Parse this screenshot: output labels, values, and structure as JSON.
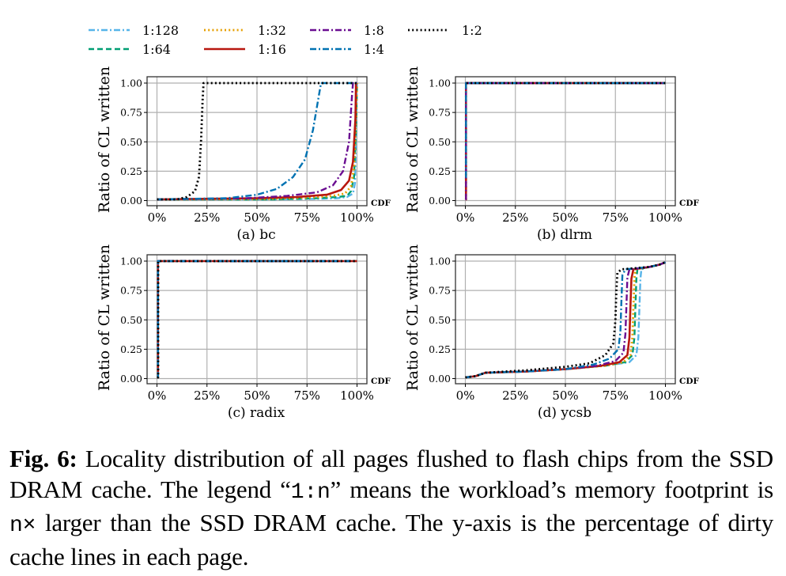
{
  "legend": [
    {
      "label": "1:128",
      "color": "#56b4e9",
      "dash": "dashdot"
    },
    {
      "label": "1:64",
      "color": "#009e73",
      "dash": "dashed"
    },
    {
      "label": "1:32",
      "color": "#e69f00",
      "dash": "dotted"
    },
    {
      "label": "1:16",
      "color": "#b8170f",
      "dash": "solid"
    },
    {
      "label": "1:8",
      "color": "#6a0d91",
      "dash": "dashdot"
    },
    {
      "label": "1:4",
      "color": "#0072b2",
      "dash": "dashdot"
    },
    {
      "label": "1:2",
      "color": "#000000",
      "dash": "dotted"
    }
  ],
  "chart_data": [
    {
      "type": "line",
      "title": "(a) bc",
      "xlabel": "CDF",
      "ylabel": "Ratio of CL written",
      "xlim": [
        0,
        100
      ],
      "ylim": [
        0,
        1
      ],
      "xticks": [
        "0%",
        "25%",
        "50%",
        "75%",
        "100%"
      ],
      "yticks": [
        "0.00",
        "0.25",
        "0.50",
        "0.75",
        "1.00"
      ],
      "grid": true,
      "series": [
        {
          "name": "1:128",
          "x": [
            0,
            60,
            80,
            90,
            95,
            98,
            99,
            99.5,
            100
          ],
          "y": [
            0.01,
            0.01,
            0.015,
            0.02,
            0.03,
            0.06,
            0.15,
            0.5,
            1.0
          ]
        },
        {
          "name": "1:64",
          "x": [
            0,
            60,
            80,
            90,
            95,
            97,
            98.5,
            99.5,
            100
          ],
          "y": [
            0.01,
            0.01,
            0.02,
            0.03,
            0.04,
            0.08,
            0.2,
            0.6,
            1.0
          ]
        },
        {
          "name": "1:32",
          "x": [
            0,
            55,
            75,
            88,
            94,
            97,
            98.5,
            99.5,
            100
          ],
          "y": [
            0.01,
            0.015,
            0.025,
            0.04,
            0.06,
            0.12,
            0.28,
            0.7,
            1.0
          ]
        },
        {
          "name": "1:16",
          "x": [
            0,
            50,
            70,
            85,
            92,
            96,
            98,
            99.2,
            99.5,
            100
          ],
          "y": [
            0.01,
            0.02,
            0.03,
            0.05,
            0.09,
            0.17,
            0.33,
            0.7,
            1.0,
            1.0
          ]
        },
        {
          "name": "1:8",
          "x": [
            0,
            45,
            65,
            80,
            88,
            93,
            96,
            97.5,
            98,
            100
          ],
          "y": [
            0.01,
            0.02,
            0.04,
            0.07,
            0.13,
            0.25,
            0.5,
            0.9,
            1.0,
            1.0
          ]
        },
        {
          "name": "1:4",
          "x": [
            0,
            35,
            50,
            60,
            68,
            74,
            78,
            81,
            82,
            100
          ],
          "y": [
            0.01,
            0.02,
            0.05,
            0.1,
            0.2,
            0.35,
            0.6,
            0.9,
            1.0,
            1.0
          ]
        },
        {
          "name": "1:2",
          "x": [
            0,
            10,
            15,
            19,
            21,
            22,
            22.8,
            23.3,
            24,
            100
          ],
          "y": [
            0.01,
            0.01,
            0.03,
            0.08,
            0.2,
            0.5,
            0.85,
            1.0,
            1.0,
            1.0
          ]
        }
      ]
    },
    {
      "type": "line",
      "title": "(b) dlrm",
      "xlabel": "CDF",
      "ylabel": "Ratio of CL written",
      "xlim": [
        0,
        100
      ],
      "ylim": [
        0,
        1
      ],
      "xticks": [
        "0%",
        "25%",
        "50%",
        "75%",
        "100%"
      ],
      "yticks": [
        "0.00",
        "0.25",
        "0.50",
        "0.75",
        "1.00"
      ],
      "grid": true,
      "series": [
        {
          "name": "1:128",
          "x": [
            0,
            0.3,
            0.3,
            100
          ],
          "y": [
            0.01,
            0.01,
            1.0,
            1.0
          ]
        },
        {
          "name": "1:64",
          "x": [
            0,
            0.3,
            0.3,
            100
          ],
          "y": [
            0.01,
            0.01,
            1.0,
            1.0
          ]
        },
        {
          "name": "1:32",
          "x": [
            0,
            0.3,
            0.3,
            100
          ],
          "y": [
            0.01,
            0.01,
            1.0,
            1.0
          ]
        },
        {
          "name": "1:16",
          "x": [
            0,
            0.3,
            0.3,
            100
          ],
          "y": [
            0.01,
            0.01,
            1.0,
            1.0
          ]
        },
        {
          "name": "1:8",
          "x": [
            0,
            0.3,
            0.3,
            100
          ],
          "y": [
            0.01,
            0.01,
            1.0,
            1.0
          ]
        },
        {
          "name": "1:4",
          "x": [
            0.1,
            0.3,
            0.3,
            100
          ],
          "y": [
            0.2,
            0.2,
            1.0,
            1.0
          ]
        },
        {
          "name": "1:2",
          "x": [
            0.5,
            100
          ],
          "y": [
            1.0,
            1.0
          ]
        }
      ]
    },
    {
      "type": "line",
      "title": "(c) radix",
      "xlabel": "CDF",
      "ylabel": "Ratio of CL written",
      "xlim": [
        0,
        100
      ],
      "ylim": [
        0,
        1
      ],
      "xticks": [
        "0%",
        "25%",
        "50%",
        "75%",
        "100%"
      ],
      "yticks": [
        "0.00",
        "0.25",
        "0.50",
        "0.75",
        "1.00"
      ],
      "grid": true,
      "series": [
        {
          "name": "1:128",
          "x": [
            0,
            0.5,
            0.5,
            100
          ],
          "y": [
            0.01,
            0.01,
            1.0,
            1.0
          ]
        },
        {
          "name": "1:64",
          "x": [
            0,
            0.5,
            0.5,
            100
          ],
          "y": [
            0.01,
            0.01,
            1.0,
            1.0
          ]
        },
        {
          "name": "1:32",
          "x": [
            0,
            0.5,
            0.5,
            100
          ],
          "y": [
            0.01,
            0.01,
            1.0,
            1.0
          ]
        },
        {
          "name": "1:16",
          "x": [
            0,
            0.5,
            0.5,
            100
          ],
          "y": [
            0.01,
            0.01,
            1.0,
            1.0
          ]
        },
        {
          "name": "1:8",
          "x": [
            0,
            0.5,
            0.5,
            100
          ],
          "y": [
            0.01,
            0.01,
            1.0,
            1.0
          ]
        },
        {
          "name": "1:4",
          "x": [
            0,
            0.5,
            0.5,
            100
          ],
          "y": [
            0.01,
            0.01,
            1.0,
            1.0
          ]
        },
        {
          "name": "1:2",
          "x": [
            0,
            0.6,
            0.6,
            100
          ],
          "y": [
            0.01,
            0.01,
            1.0,
            1.0
          ]
        }
      ]
    },
    {
      "type": "line",
      "title": "(d) ycsb",
      "xlabel": "CDF",
      "ylabel": "Ratio of CL written",
      "xlim": [
        0,
        100
      ],
      "ylim": [
        0,
        1
      ],
      "xticks": [
        "0%",
        "25%",
        "50%",
        "75%",
        "100%"
      ],
      "yticks": [
        "0.00",
        "0.25",
        "0.50",
        "0.75",
        "1.00"
      ],
      "grid": true,
      "series": [
        {
          "name": "1:128",
          "x": [
            0,
            5,
            10,
            30,
            50,
            70,
            82,
            85.5,
            86.5,
            87,
            87.5,
            88,
            92,
            97,
            100
          ],
          "y": [
            0.01,
            0.02,
            0.05,
            0.06,
            0.08,
            0.11,
            0.14,
            0.2,
            0.35,
            0.6,
            0.85,
            0.93,
            0.95,
            0.97,
            0.99
          ]
        },
        {
          "name": "1:64",
          "x": [
            0,
            5,
            10,
            30,
            50,
            70,
            80,
            83.5,
            84.5,
            85,
            85.5,
            86,
            92,
            97,
            100
          ],
          "y": [
            0.01,
            0.02,
            0.05,
            0.06,
            0.08,
            0.11,
            0.14,
            0.2,
            0.35,
            0.6,
            0.85,
            0.93,
            0.95,
            0.97,
            0.99
          ]
        },
        {
          "name": "1:32",
          "x": [
            0,
            5,
            10,
            30,
            50,
            70,
            79,
            82.5,
            83.5,
            84,
            84.5,
            85,
            92,
            97,
            100
          ],
          "y": [
            0.01,
            0.02,
            0.05,
            0.06,
            0.08,
            0.11,
            0.14,
            0.2,
            0.35,
            0.6,
            0.85,
            0.93,
            0.95,
            0.97,
            0.99
          ]
        },
        {
          "name": "1:16",
          "x": [
            0,
            5,
            10,
            30,
            50,
            68,
            77,
            81,
            82,
            82.5,
            83,
            84,
            92,
            97,
            100
          ],
          "y": [
            0.01,
            0.02,
            0.05,
            0.06,
            0.08,
            0.11,
            0.14,
            0.2,
            0.35,
            0.6,
            0.85,
            0.93,
            0.95,
            0.97,
            0.99
          ]
        },
        {
          "name": "1:8",
          "x": [
            0,
            5,
            10,
            30,
            50,
            66,
            75,
            79,
            80,
            80.5,
            81,
            82,
            92,
            97,
            100
          ],
          "y": [
            0.01,
            0.02,
            0.05,
            0.06,
            0.08,
            0.11,
            0.15,
            0.22,
            0.38,
            0.62,
            0.86,
            0.93,
            0.95,
            0.97,
            0.99
          ]
        },
        {
          "name": "1:4",
          "x": [
            0,
            5,
            10,
            30,
            50,
            64,
            72,
            76.5,
            77.5,
            78,
            78.5,
            80,
            92,
            97,
            100
          ],
          "y": [
            0.01,
            0.02,
            0.05,
            0.06,
            0.08,
            0.12,
            0.17,
            0.25,
            0.4,
            0.65,
            0.88,
            0.93,
            0.95,
            0.97,
            0.99
          ]
        },
        {
          "name": "1:2",
          "x": [
            0,
            5,
            10,
            30,
            50,
            62,
            70,
            74,
            75,
            75.5,
            76,
            78,
            92,
            97,
            100
          ],
          "y": [
            0.01,
            0.02,
            0.05,
            0.07,
            0.1,
            0.13,
            0.2,
            0.3,
            0.5,
            0.75,
            0.9,
            0.93,
            0.95,
            0.97,
            0.99
          ]
        }
      ]
    }
  ],
  "caption": {
    "label": "Fig. 6:",
    "part1": " Locality distribution of all pages flushed to flash chips from the SSD DRAM cache. The legend “",
    "code1": "1:n",
    "part2": "” means the workload’s memory footprint is ",
    "code2": "n×",
    "part3": " larger than the SSD DRAM cache. The y-axis is the percentage of dirty cache lines in each page."
  }
}
